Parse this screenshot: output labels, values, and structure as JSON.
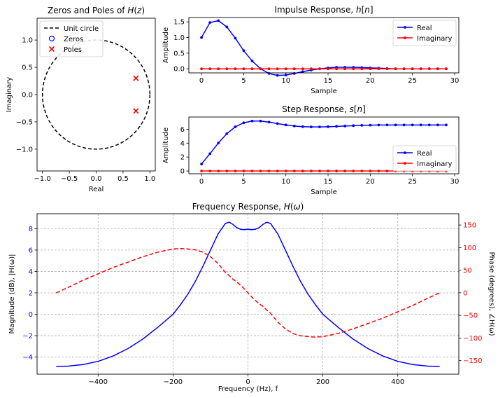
{
  "colors": {
    "blue": "#0000ff",
    "red": "#ff0000",
    "black": "#000000",
    "grid": "#b0b0b0"
  },
  "chart_data": [
    {
      "id": "pz",
      "type": "scatter",
      "title": "Zeros and Poles of H(z)",
      "title_parts": [
        "Zeros and Poles of ",
        "H",
        "(",
        "z",
        ")"
      ],
      "xlabel": "Real",
      "ylabel": "Imaginary",
      "xlim": [
        -1.1,
        1.1
      ],
      "ylim": [
        -1.4,
        1.4
      ],
      "xticks": [
        -1.0,
        -0.5,
        0.0,
        0.5,
        1.0
      ],
      "xtick_labels": [
        "−1.0",
        "−0.5",
        "0.0",
        "0.5",
        "1.0"
      ],
      "yticks": [
        -1.0,
        -0.5,
        0.0,
        0.5,
        1.0
      ],
      "ytick_labels": [
        "−1.0",
        "−0.5",
        "0.0",
        "0.5",
        "1.0"
      ],
      "legend_position": "top-left",
      "legend": [
        "Unit circle",
        "Zeros",
        "Poles"
      ],
      "unit_circle_radius": 1.0,
      "zeros": [],
      "poles": [
        [
          0.74,
          0.3
        ],
        [
          0.74,
          -0.3
        ]
      ]
    },
    {
      "id": "impulse",
      "type": "line",
      "title": "Impulse Response, h[n]",
      "title_parts": [
        "Impulse Response, ",
        "h",
        "[",
        "n",
        "]"
      ],
      "xlabel": "Sample",
      "ylabel": "Amplitude",
      "xlim": [
        -1.5,
        30.5
      ],
      "ylim": [
        -0.13,
        1.64
      ],
      "xticks": [
        0,
        5,
        10,
        15,
        20,
        25,
        30
      ],
      "yticks": [
        0.0,
        0.5,
        1.0,
        1.5
      ],
      "ytick_labels": [
        "0.0",
        "0.5",
        "1.0",
        "1.5"
      ],
      "legend_position": "top-right",
      "x": [
        0,
        1,
        2,
        3,
        4,
        5,
        6,
        7,
        8,
        9,
        10,
        11,
        12,
        13,
        14,
        15,
        16,
        17,
        18,
        19,
        20,
        21,
        22,
        23,
        24,
        25,
        26,
        27,
        28,
        29
      ],
      "series": [
        {
          "name": "Real",
          "values": [
            1.0,
            1.48,
            1.54,
            1.34,
            0.98,
            0.58,
            0.25,
            0.0,
            -0.15,
            -0.21,
            -0.2,
            -0.15,
            -0.09,
            -0.04,
            0.0,
            0.03,
            0.05,
            0.05,
            0.05,
            0.04,
            0.03,
            0.02,
            0.01,
            0.0,
            0.0,
            0.0,
            0.0,
            0.0,
            0.0,
            0.0
          ]
        },
        {
          "name": "Imaginary",
          "values": [
            0,
            0,
            0,
            0,
            0,
            0,
            0,
            0,
            0,
            0,
            0,
            0,
            0,
            0,
            0,
            0,
            0,
            0,
            0,
            0,
            0,
            0,
            0,
            0,
            0,
            0,
            0,
            0,
            0,
            0
          ]
        }
      ]
    },
    {
      "id": "step",
      "type": "line",
      "title": "Step Response, s[n]",
      "title_parts": [
        "Step Response, ",
        "s",
        "[",
        "n",
        "]"
      ],
      "xlabel": "Sample",
      "ylabel": "Amplitude",
      "xlim": [
        -1.5,
        30.5
      ],
      "ylim": [
        -0.4,
        7.75
      ],
      "xticks": [
        0,
        5,
        10,
        15,
        20,
        25,
        30
      ],
      "yticks": [
        0,
        2,
        4,
        6
      ],
      "ytick_labels": [
        "0",
        "2",
        "4",
        "6"
      ],
      "legend_position": "bottom-right",
      "x": [
        0,
        1,
        2,
        3,
        4,
        5,
        6,
        7,
        8,
        9,
        10,
        11,
        12,
        13,
        14,
        15,
        16,
        17,
        18,
        19,
        20,
        21,
        22,
        23,
        24,
        25,
        26,
        27,
        28,
        29
      ],
      "series": [
        {
          "name": "Real",
          "values": [
            1.0,
            2.48,
            4.02,
            5.36,
            6.34,
            6.92,
            7.17,
            7.17,
            7.02,
            6.81,
            6.61,
            6.46,
            6.37,
            6.33,
            6.33,
            6.36,
            6.41,
            6.46,
            6.51,
            6.55,
            6.58,
            6.6,
            6.61,
            6.61,
            6.61,
            6.61,
            6.61,
            6.61,
            6.61,
            6.61
          ]
        },
        {
          "name": "Imaginary",
          "values": [
            0,
            0,
            0,
            0,
            0,
            0,
            0,
            0,
            0,
            0,
            0,
            0,
            0,
            0,
            0,
            0,
            0,
            0,
            0,
            0,
            0,
            0,
            0,
            0,
            0,
            0,
            0,
            0,
            0,
            0
          ]
        }
      ]
    },
    {
      "id": "freq",
      "type": "line",
      "title": "Frequency Response, H(ω)",
      "title_parts": [
        "Frequency Response, ",
        "H",
        "(",
        "ω",
        ")"
      ],
      "xlabel": "Frequency (Hz), f",
      "ylabel_left": "Magnitude (dB), |H(ω)|",
      "ylabel_right": "Phase (degrees), ∠H(ω)",
      "xlim": [
        -563,
        563
      ],
      "ylim_left": [
        -5.6,
        9.4
      ],
      "ylim_right": [
        -180,
        175
      ],
      "xticks": [
        -400,
        -200,
        0,
        200,
        400
      ],
      "xtick_labels": [
        "−400",
        "−200",
        "0",
        "200",
        "400"
      ],
      "yticks_left": [
        -4,
        -2,
        0,
        2,
        4,
        6,
        8
      ],
      "ytick_labels_left": [
        "−4",
        "−2",
        "0",
        "2",
        "4",
        "6",
        "8"
      ],
      "yticks_right": [
        -150,
        -100,
        -50,
        0,
        50,
        100,
        150
      ],
      "ytick_labels_right": [
        "−150",
        "−100",
        "−50",
        "0",
        "50",
        "100",
        "150"
      ],
      "grid": true,
      "x": [
        -512,
        -480,
        -440,
        -400,
        -360,
        -320,
        -280,
        -240,
        -200,
        -180,
        -160,
        -140,
        -120,
        -100,
        -80,
        -60,
        -50,
        -40,
        -30,
        -20,
        -10,
        0,
        10,
        20,
        30,
        40,
        50,
        60,
        80,
        100,
        120,
        140,
        160,
        180,
        200,
        240,
        280,
        320,
        360,
        400,
        440,
        480,
        512
      ],
      "series": [
        {
          "name": "Magnitude",
          "axis": "left",
          "style": "solid",
          "color": "#0000ff",
          "values": [
            -4.9,
            -4.85,
            -4.7,
            -4.4,
            -3.9,
            -3.2,
            -2.3,
            -1.2,
            0.0,
            0.9,
            1.9,
            3.1,
            4.5,
            6.0,
            7.5,
            8.5,
            8.6,
            8.4,
            8.1,
            7.95,
            7.9,
            7.95,
            7.9,
            7.95,
            8.1,
            8.4,
            8.6,
            8.5,
            7.5,
            6.0,
            4.5,
            3.1,
            1.9,
            0.9,
            0.0,
            -1.2,
            -2.3,
            -3.2,
            -3.9,
            -4.4,
            -4.7,
            -4.85,
            -4.9
          ]
        },
        {
          "name": "Phase",
          "axis": "right",
          "style": "dashed",
          "color": "#ff0000",
          "values": [
            0,
            12,
            28,
            42,
            56,
            68,
            80,
            90,
            97,
            98,
            97,
            95,
            90,
            80,
            65,
            45,
            38,
            30,
            24,
            17,
            9,
            0,
            -9,
            -17,
            -24,
            -30,
            -38,
            -45,
            -65,
            -80,
            -90,
            -95,
            -97,
            -98,
            -97,
            -90,
            -80,
            -68,
            -56,
            -42,
            -28,
            -12,
            0
          ]
        }
      ]
    }
  ]
}
